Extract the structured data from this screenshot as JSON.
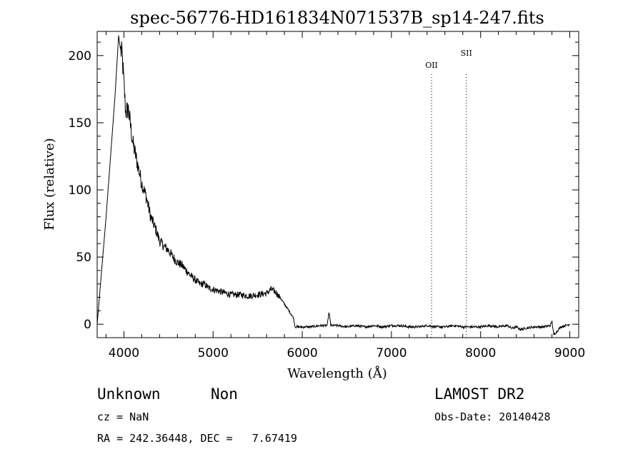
{
  "chart_data": {
    "type": "line",
    "title": "spec-56776-HD161834N071537B_sp14-247.fits",
    "xlabel": "Wavelength (Å)",
    "ylabel": "Flux (relative)",
    "xlim": [
      3700,
      9100
    ],
    "ylim": [
      -10,
      218
    ],
    "xticks": [
      4000,
      5000,
      6000,
      7000,
      8000,
      9000
    ],
    "yticks": [
      0,
      50,
      100,
      150,
      200
    ],
    "grid": false,
    "line_color": "#000000",
    "lines": [
      {
        "label": "OII",
        "x": 7450
      },
      {
        "label": "SII",
        "x": 7840
      }
    ],
    "series": [
      {
        "x": [
          3700,
          3800,
          3900,
          3940,
          3960,
          3980,
          4000,
          4020,
          4050,
          4080,
          4100,
          4150,
          4200,
          4250,
          4300,
          4350,
          4400,
          4450,
          4500,
          4550,
          4600,
          4650,
          4700,
          4750,
          4800,
          4850,
          4900,
          4950,
          5000,
          5100,
          5200,
          5300,
          5400,
          5500,
          5600,
          5650,
          5700,
          5750,
          5800,
          5850,
          5900,
          5920,
          6000,
          6100,
          6200,
          6280,
          6300,
          6320,
          6400,
          6500,
          6600,
          6700,
          6800,
          6900,
          7000,
          7100,
          7200,
          7300,
          7400,
          7500,
          7600,
          7700,
          7800,
          7900,
          8000,
          8100,
          8200,
          8300,
          8350,
          8400,
          8450,
          8500,
          8600,
          8700,
          8780,
          8800,
          8820,
          8900,
          9000
        ],
        "y": [
          0,
          80,
          170,
          215,
          205,
          200,
          180,
          158,
          160,
          145,
          135,
          120,
          105,
          95,
          80,
          72,
          62,
          58,
          55,
          50,
          46,
          44,
          40,
          36,
          33,
          30,
          30,
          27,
          26,
          24,
          22,
          22,
          21,
          22,
          23,
          26,
          24,
          20,
          15,
          10,
          5,
          -2,
          -2,
          -2,
          -1,
          -1,
          9,
          -1,
          -1,
          -2,
          -1,
          -2,
          -1,
          -2,
          -1,
          -1,
          -2,
          -2,
          -1,
          -2,
          -2,
          -1,
          -2,
          -2,
          -2,
          -1,
          -2,
          -1,
          -3,
          -2,
          -4,
          -3,
          -2,
          -2,
          -1,
          2,
          -8,
          -2,
          0
        ]
      }
    ]
  },
  "footer": {
    "object_class": "Unknown",
    "object_subclass": "Non",
    "cz": "cz = NaN",
    "coords": "RA = 242.36448, DEC =   7.67419",
    "survey": "LAMOST DR2",
    "obs_date": "Obs-Date: 20140428"
  }
}
